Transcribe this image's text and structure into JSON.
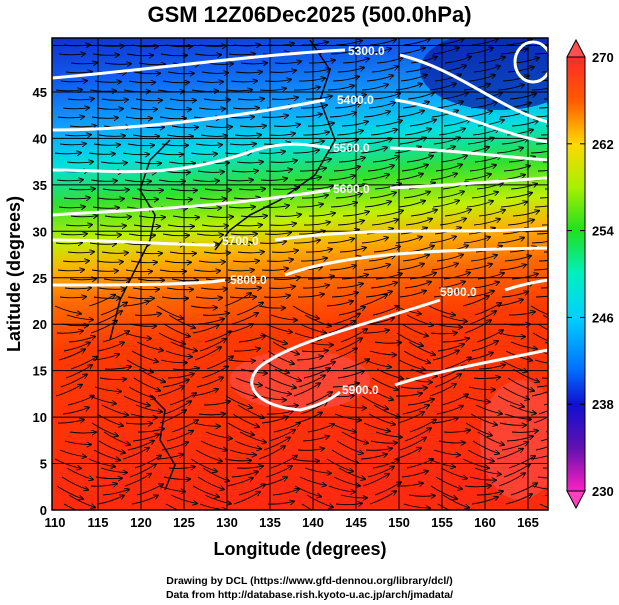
{
  "title": "GSM 12Z06Dec2025 (500.0hPa)",
  "xaxis": {
    "label": "Longitude (degrees)",
    "ticks": [
      "110",
      "115",
      "120",
      "125",
      "130",
      "135",
      "140",
      "145",
      "150",
      "155",
      "160",
      "165"
    ]
  },
  "yaxis": {
    "label": "Latitude  (degrees)",
    "ticks": [
      "0",
      "5",
      "10",
      "15",
      "20",
      "25",
      "30",
      "35",
      "40",
      "45"
    ]
  },
  "colorbar": {
    "ticks": [
      "270",
      "262",
      "254",
      "246",
      "238",
      "230"
    ],
    "colors": [
      "#ff4040",
      "#ff2a00",
      "#ff7a00",
      "#ffd700",
      "#b8f000",
      "#20e020",
      "#00f0c0",
      "#00d8ff",
      "#0080ff",
      "#1020e0",
      "#000090",
      "#8010c0",
      "#ff30c0"
    ]
  },
  "contours": [
    "5300.0",
    "5400.0",
    "5500.0",
    "5600.0",
    "5700.0",
    "5800.0",
    "5900.0",
    "5900.0"
  ],
  "footer": {
    "line1": "Drawing by DCL (https://www.gfd-dennou.org/library/dcl/)",
    "line2": "Data from http://database.rish.kyoto-u.ac.jp/arch/jmadata/"
  }
}
